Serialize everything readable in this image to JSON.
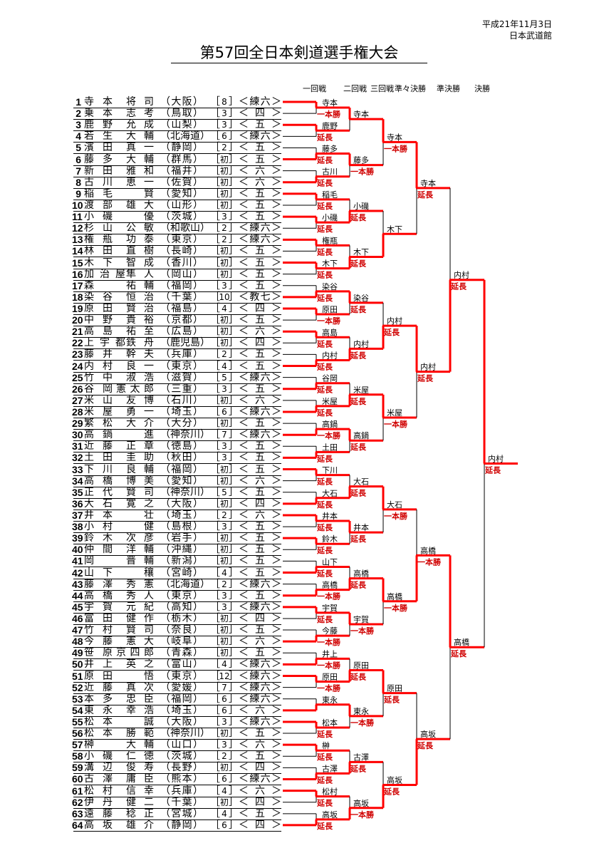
{
  "header": {
    "date": "平成21年11月3日",
    "venue": "日本武道館",
    "title": "第57回全日本剣道選手権大会"
  },
  "round_headers": [
    "一回戦",
    "二回戦",
    "三回戦",
    "準々決勝",
    "準決勝",
    "決勝"
  ],
  "colors": {
    "winner_line": "#ff0000",
    "result_text": "#d00000",
    "loser_line": "#000000"
  },
  "players": [
    [
      "1",
      "寺本",
      "将司",
      "（大阪）",
      "8",
      "＜練六＞"
    ],
    [
      "2",
      "乗本",
      "志考",
      "（鳥取）",
      "3",
      "＜四＞"
    ],
    [
      "3",
      "鹿野",
      "允成",
      "（山梨）",
      "3",
      "＜五＞"
    ],
    [
      "4",
      "若生",
      "大輔",
      "（北海道）",
      "6",
      "＜練六＞"
    ],
    [
      "5",
      "濱田",
      "真一",
      "（静岡）",
      "2",
      "＜五＞"
    ],
    [
      "6",
      "藤多",
      "大輔",
      "（群馬）",
      "初",
      "＜五＞"
    ],
    [
      "7",
      "新田",
      "雅和",
      "（福井）",
      "初",
      "＜六＞"
    ],
    [
      "8",
      "古川",
      "恵一",
      "（佐賀）",
      "初",
      "＜六＞"
    ],
    [
      "9",
      "稲毛",
      "賢",
      "（愛知）",
      "初",
      "＜五＞"
    ],
    [
      "10",
      "渡部",
      "雄大",
      "（山形）",
      "初",
      "＜五＞"
    ],
    [
      "11",
      "小磯",
      "優",
      "（茨城）",
      "3",
      "＜五＞"
    ],
    [
      "12",
      "杉山",
      "公敏",
      "（和歌山）",
      "2",
      "＜練六＞"
    ],
    [
      "13",
      "権瓶",
      "功泰",
      "（東京）",
      "2",
      "＜練六＞"
    ],
    [
      "14",
      "林田",
      "直樹",
      "（長崎）",
      "初",
      "＜五＞"
    ],
    [
      "15",
      "木下",
      "智成",
      "（香川）",
      "初",
      "＜五＞"
    ],
    [
      "16",
      "加治屋",
      "隼人",
      "（岡山）",
      "初",
      "＜五＞"
    ],
    [
      "17",
      "森",
      "祐輔",
      "（福岡）",
      "3",
      "＜五＞"
    ],
    [
      "18",
      "染谷",
      "恒治",
      "（千葉）",
      "10",
      "＜教七＞"
    ],
    [
      "19",
      "原田",
      "賢治",
      "（福島）",
      "4",
      "＜四＞"
    ],
    [
      "20",
      "中野",
      "貴裕",
      "（京都）",
      "初",
      "＜五＞"
    ],
    [
      "21",
      "高島",
      "祐至",
      "（広島）",
      "初",
      "＜六＞"
    ],
    [
      "22",
      "上宇都",
      "鉄舟",
      "（鹿児島）",
      "初",
      "＜四＞"
    ],
    [
      "23",
      "藤井",
      "幹夫",
      "（兵庫）",
      "2",
      "＜五＞"
    ],
    [
      "24",
      "内村",
      "良一",
      "（東京）",
      "4",
      "＜五＞"
    ],
    [
      "25",
      "竹中",
      "淑浩",
      "（滋賀）",
      "5",
      "＜練六＞"
    ],
    [
      "26",
      "谷岡",
      "憲太郎",
      "（三重）",
      "3",
      "＜五＞"
    ],
    [
      "27",
      "米山",
      "友博",
      "（石川）",
      "初",
      "＜六＞"
    ],
    [
      "28",
      "米屋",
      "勇一",
      "（埼玉）",
      "6",
      "＜練六＞"
    ],
    [
      "29",
      "繁松",
      "大介",
      "（大分）",
      "初",
      "＜五＞"
    ],
    [
      "30",
      "高鍋",
      "進",
      "（神奈川）",
      "7",
      "＜練六＞"
    ],
    [
      "31",
      "近藤",
      "正章",
      "（徳島）",
      "3",
      "＜五＞"
    ],
    [
      "32",
      "土田",
      "圭助",
      "（秋田）",
      "3",
      "＜五＞"
    ],
    [
      "33",
      "下川",
      "良輔",
      "（福岡）",
      "初",
      "＜五＞"
    ],
    [
      "34",
      "高橋",
      "博美",
      "（愛知）",
      "初",
      "＜六＞"
    ],
    [
      "35",
      "正代",
      "賢司",
      "（神奈川）",
      "5",
      "＜五＞"
    ],
    [
      "36",
      "大石",
      "寛之",
      "（大阪）",
      "初",
      "＜四＞"
    ],
    [
      "37",
      "井本",
      "壮",
      "（埼玉）",
      "2",
      "＜六＞"
    ],
    [
      "38",
      "小村",
      "健",
      "（島根）",
      "3",
      "＜五＞"
    ],
    [
      "39",
      "鈴木",
      "次彦",
      "（岩手）",
      "初",
      "＜五＞"
    ],
    [
      "40",
      "仲間",
      "洋輔",
      "（沖縄）",
      "初",
      "＜五＞"
    ],
    [
      "41",
      "岡",
      "晋輔",
      "（新潟）",
      "初",
      "＜五＞"
    ],
    [
      "42",
      "山下",
      "穰",
      "（宮崎）",
      "4",
      "＜五＞"
    ],
    [
      "43",
      "藤澤",
      "秀憲",
      "（北海道）",
      "2",
      "＜練六＞"
    ],
    [
      "44",
      "高橋",
      "秀人",
      "（東京）",
      "3",
      "＜五＞"
    ],
    [
      "45",
      "宇賀",
      "元紀",
      "（高知）",
      "3",
      "＜練六＞"
    ],
    [
      "46",
      "富田",
      "健作",
      "（栃木）",
      "初",
      "＜四＞"
    ],
    [
      "47",
      "竹村",
      "賢司",
      "（奈良）",
      "初",
      "＜五＞"
    ],
    [
      "48",
      "今藤",
      "憲大",
      "（岐阜）",
      "初",
      "＜六＞"
    ],
    [
      "49",
      "笹原",
      "京四郎",
      "（青森）",
      "初",
      "＜五＞"
    ],
    [
      "50",
      "井上",
      "英之",
      "（富山）",
      "4",
      "＜練六＞"
    ],
    [
      "51",
      "原田",
      "悟",
      "（東京）",
      "12",
      "＜練六＞"
    ],
    [
      "52",
      "近藤",
      "真次",
      "（愛媛）",
      "7",
      "＜練六＞"
    ],
    [
      "53",
      "本多",
      "忠臣",
      "（福岡）",
      "6",
      "＜練六＞"
    ],
    [
      "54",
      "東永",
      "幸浩",
      "（埼玉）",
      "6",
      "＜六＞"
    ],
    [
      "55",
      "松本",
      "誠",
      "（大阪）",
      "3",
      "＜練六＞"
    ],
    [
      "56",
      "松本",
      "勝範",
      "（神奈川）",
      "初",
      "＜五＞"
    ],
    [
      "57",
      "榊",
      "大輔",
      "（山口）",
      "3",
      "＜六＞"
    ],
    [
      "58",
      "小磯",
      "仁徳",
      "（茨城）",
      "2",
      "＜五＞"
    ],
    [
      "59",
      "溝辺",
      "俊寿",
      "（長野）",
      "初",
      "＜四＞"
    ],
    [
      "60",
      "古澤",
      "庸臣",
      "（熊本）",
      "6",
      "＜練六＞"
    ],
    [
      "61",
      "松村",
      "信幸",
      "（兵庫）",
      "4",
      "＜六＞"
    ],
    [
      "62",
      "伊丹",
      "健二",
      "（千葉）",
      "初",
      "＜四＞"
    ],
    [
      "63",
      "遠藤",
      "稔正",
      "（宮城）",
      "4",
      "＜五＞"
    ],
    [
      "64",
      "高坂",
      "雄介",
      "（静岡）",
      "6",
      "＜四＞"
    ]
  ],
  "rounds": [
    [
      [
        "寺本",
        "一本勝",
        "top"
      ],
      [
        "鹿野",
        "延長",
        "top"
      ],
      [
        "藤多",
        "延長",
        "bottom"
      ],
      [
        "古川",
        "延長",
        "bottom"
      ],
      [
        "稲毛",
        "延長",
        "top"
      ],
      [
        "小磯",
        "延長",
        "top"
      ],
      [
        "権瓶",
        "延長",
        "top"
      ],
      [
        "木下",
        "延長",
        "top"
      ],
      [
        "染谷",
        "延長",
        "bottom"
      ],
      [
        "原田",
        "一本勝",
        "top"
      ],
      [
        "高島",
        "延長",
        "top"
      ],
      [
        "内村",
        "延長",
        "bottom"
      ],
      [
        "谷岡",
        "延長",
        "bottom"
      ],
      [
        "米屋",
        "延長",
        "bottom"
      ],
      [
        "高鍋",
        "一本勝",
        "bottom"
      ],
      [
        "土田",
        "延長",
        "bottom"
      ],
      [
        "下川",
        "延長",
        "top"
      ],
      [
        "大石",
        "延長",
        "bottom"
      ],
      [
        "井本",
        "延長",
        "top"
      ],
      [
        "鈴木",
        "延長",
        "top"
      ],
      [
        "山下",
        "延長",
        "bottom"
      ],
      [
        "高橋",
        "一本勝",
        "bottom"
      ],
      [
        "宇賀",
        "延長",
        "top"
      ],
      [
        "今藤",
        "一本勝",
        "bottom"
      ],
      [
        "井上",
        "一本勝",
        "bottom"
      ],
      [
        "原田",
        "一本勝",
        "top"
      ],
      [
        "東永",
        "",
        "bottom"
      ],
      [
        "松本",
        "延長",
        "top"
      ],
      [
        "榊",
        "延長",
        "top"
      ],
      [
        "古澤",
        "延長",
        "bottom"
      ],
      [
        "松村",
        "延長",
        "top"
      ],
      [
        "高坂",
        "延長",
        "bottom"
      ]
    ],
    [
      [
        "寺本",
        "",
        "top"
      ],
      [
        "藤多",
        "一本勝",
        "top"
      ],
      [
        "小磯",
        "延長",
        "bottom"
      ],
      [
        "木下",
        "延長",
        "bottom"
      ],
      [
        "染谷",
        "延長",
        "top"
      ],
      [
        "内村",
        "延長",
        "bottom"
      ],
      [
        "米屋",
        "延長",
        "bottom"
      ],
      [
        "高鍋",
        "延長",
        "top"
      ],
      [
        "大石",
        "延長",
        "bottom"
      ],
      [
        "井本",
        "延長",
        "top"
      ],
      [
        "高橋",
        "延長",
        "bottom"
      ],
      [
        "宇賀",
        "一本勝",
        "top"
      ],
      [
        "原田",
        "延長",
        "bottom"
      ],
      [
        "東永",
        "一本勝",
        "top"
      ],
      [
        "古澤",
        "延長",
        "bottom"
      ],
      [
        "高坂",
        "一本勝",
        "bottom"
      ]
    ],
    [
      [
        "寺本",
        "一本勝",
        "top"
      ],
      [
        "木下",
        "",
        "bottom"
      ],
      [
        "内村",
        "延長",
        "bottom"
      ],
      [
        "米屋",
        "一本勝",
        "top"
      ],
      [
        "大石",
        "一本勝",
        "top"
      ],
      [
        "高橋",
        "一本勝",
        "top"
      ],
      [
        "原田",
        "延長",
        "top"
      ],
      [
        "高坂",
        "延長",
        "bottom"
      ]
    ],
    [
      [
        "寺本",
        "延長",
        "top"
      ],
      [
        "内村",
        "延長",
        "top"
      ],
      [
        "高橋",
        "一本勝",
        "bottom"
      ],
      [
        "高坂",
        "延長",
        "bottom"
      ]
    ],
    [
      [
        "内村",
        "延長",
        "bottom"
      ],
      [
        "高橋",
        "延長",
        "top"
      ]
    ],
    [
      [
        "内村",
        "延長",
        "top"
      ]
    ]
  ]
}
